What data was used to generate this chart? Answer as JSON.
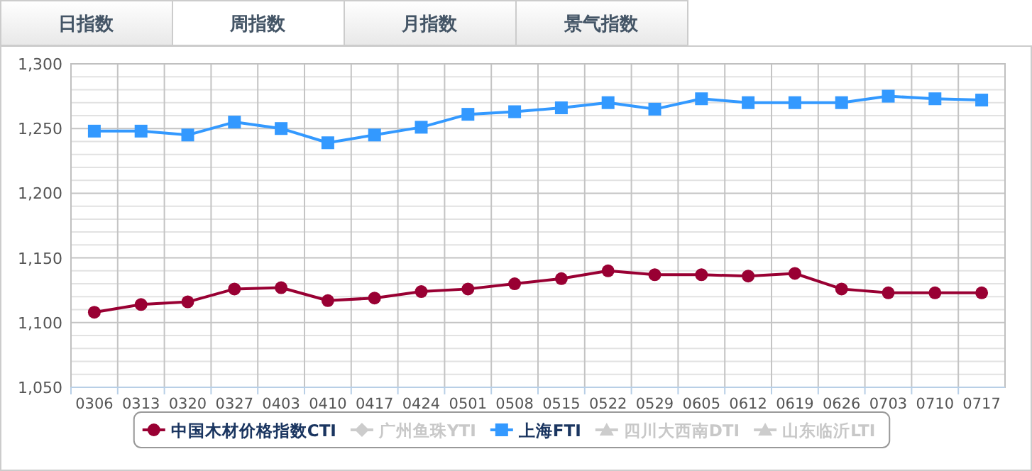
{
  "chart_data": {
    "type": "line",
    "annotations": [
      "日指数",
      "周指数",
      "月指数",
      "景气指数"
    ],
    "categories": [
      "0306",
      "0313",
      "0320",
      "0327",
      "0403",
      "0410",
      "0417",
      "0424",
      "0501",
      "0508",
      "0515",
      "0522",
      "0529",
      "0605",
      "0612",
      "0619",
      "0626",
      "0703",
      "0710",
      "0717"
    ],
    "series": [
      {
        "name": "中国木材价格指数CTI",
        "color": "#990033",
        "marker": "circle",
        "values": [
          1108,
          1114,
          1116,
          1126,
          1127,
          1117,
          1119,
          1124,
          1126,
          1130,
          1134,
          1140,
          1137,
          1137,
          1136,
          1138,
          1126,
          1123,
          1123,
          1123
        ]
      },
      {
        "name": "广州鱼珠YTI",
        "color": "#cccccc",
        "marker": "diamond",
        "values": [
          null,
          null,
          null,
          null,
          null,
          null,
          null,
          null,
          null,
          null,
          null,
          null,
          null,
          null,
          null,
          null,
          null,
          null,
          null,
          null
        ]
      },
      {
        "name": "上海FTI",
        "color": "#3399ff",
        "marker": "square",
        "values": [
          1248,
          1248,
          1245,
          1255,
          1250,
          1239,
          1245,
          1251,
          1261,
          1263,
          1266,
          1270,
          1265,
          1273,
          1270,
          1270,
          1270,
          1275,
          1273,
          1272
        ]
      },
      {
        "name": "四川大西南DTI",
        "color": "#cccccc",
        "marker": "triangle",
        "values": [
          null,
          null,
          null,
          null,
          null,
          null,
          null,
          null,
          null,
          null,
          null,
          null,
          null,
          null,
          null,
          null,
          null,
          null,
          null,
          null
        ]
      },
      {
        "name": "山东临沂LTI",
        "color": "#cccccc",
        "marker": "triangle",
        "values": [
          null,
          null,
          null,
          null,
          null,
          null,
          null,
          null,
          null,
          null,
          null,
          null,
          null,
          null,
          null,
          null,
          null,
          null,
          null,
          null
        ]
      }
    ],
    "ylim": [
      1050,
      1300
    ],
    "yticks": [
      {
        "value": 1050,
        "label": "1,050"
      },
      {
        "value": 1100,
        "label": "1,100"
      },
      {
        "value": 1150,
        "label": "1,150"
      },
      {
        "value": 1200,
        "label": "1,200"
      },
      {
        "value": 1250,
        "label": "1,250"
      },
      {
        "value": 1300,
        "label": "1,300"
      }
    ],
    "grid": true,
    "legend": "bottom"
  }
}
